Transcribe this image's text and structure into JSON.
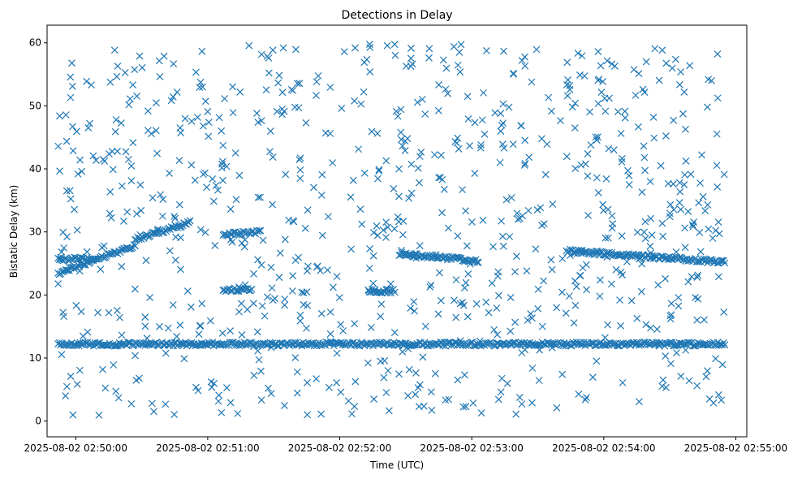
{
  "chart_data": {
    "type": "scatter",
    "title": "Detections in Delay",
    "xlabel": "Time (UTC)",
    "ylabel": "Bistatic Delay (km)",
    "marker": "x",
    "color": "#1f77b4",
    "grid": false,
    "xlim": [
      "2025-08-02 02:49:47",
      "2025-08-02 02:55:05"
    ],
    "ylim": [
      -2.5,
      62.8
    ],
    "xticks": [
      "2025-08-02 02:50:00",
      "2025-08-02 02:51:00",
      "2025-08-02 02:52:00",
      "2025-08-02 02:53:00",
      "2025-08-02 02:54:00",
      "2025-08-02 02:55:00"
    ],
    "yticks": [
      0,
      10,
      20,
      30,
      40,
      50,
      60
    ],
    "visible_x_range": [
      "2025-08-02 02:49:52",
      "2025-08-02 02:54:55"
    ],
    "tracks": [
      {
        "description": "near-constant track",
        "x_start": "2025-08-02 02:49:52",
        "x_end": "2025-08-02 02:54:55",
        "y_start": 12.2,
        "y_end": 12.2
      },
      {
        "description": "rising track",
        "x_start": "2025-08-02 02:49:52",
        "x_end": "2025-08-02 02:50:27",
        "y_start": 23.5,
        "y_end": 27.8
      },
      {
        "description": "rising track",
        "x_start": "2025-08-02 02:50:27",
        "x_end": "2025-08-02 02:50:52",
        "y_start": 28.8,
        "y_end": 31.5
      },
      {
        "description": "steady track",
        "x_start": "2025-08-02 02:51:07",
        "x_end": "2025-08-02 02:51:24",
        "y_start": 29.6,
        "y_end": 30.0
      },
      {
        "description": "steady track",
        "x_start": "2025-08-02 02:51:07",
        "x_end": "2025-08-02 02:51:20",
        "y_start": 20.8,
        "y_end": 20.8
      },
      {
        "description": "steady track",
        "x_start": "2025-08-02 02:49:52",
        "x_end": "2025-08-02 02:50:08",
        "y_start": 25.7,
        "y_end": 25.7
      },
      {
        "description": "falling track",
        "x_start": "2025-08-02 02:52:27",
        "x_end": "2025-08-02 02:53:03",
        "y_start": 26.5,
        "y_end": 25.4
      },
      {
        "description": "steady track",
        "x_start": "2025-08-02 02:52:13",
        "x_end": "2025-08-02 02:52:25",
        "y_start": 20.6,
        "y_end": 20.6
      },
      {
        "description": "falling track",
        "x_start": "2025-08-02 02:53:43",
        "x_end": "2025-08-02 02:54:55",
        "y_start": 27.0,
        "y_end": 25.2
      }
    ],
    "scatter_noise": {
      "approx_points": 850,
      "y_range": [
        0.8,
        59.8
      ]
    }
  }
}
